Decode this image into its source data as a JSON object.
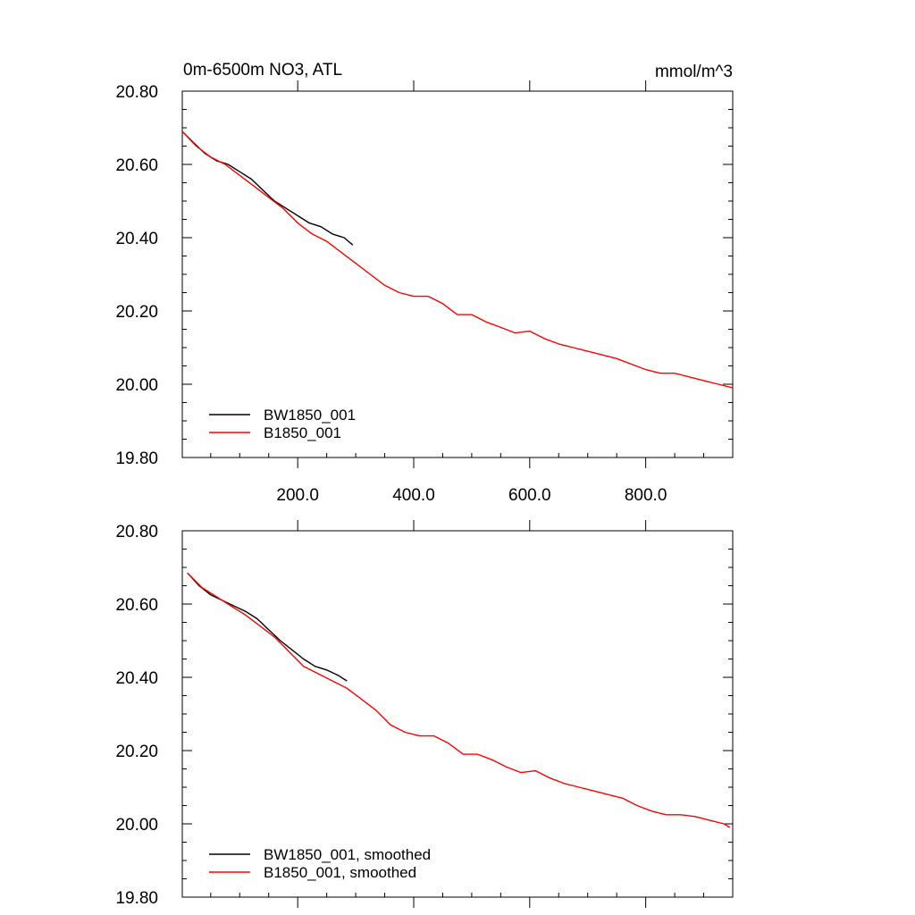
{
  "chart_data": [
    {
      "type": "line",
      "title_left": "0m-6500m NO3, ATL",
      "title_right": "mmol/m^3",
      "xlim": [
        1,
        950
      ],
      "ylim": [
        19.8,
        20.8
      ],
      "y_ticks": [
        "20.80",
        "20.60",
        "20.40",
        "20.20",
        "20.00",
        "19.80"
      ],
      "x_ticks": [
        "200.0",
        "400.0",
        "600.0",
        "800.0"
      ],
      "legend_position": "bottom-left",
      "series": [
        {
          "name": "BW1850_001",
          "color": "#000000",
          "x": [
            1,
            20,
            40,
            60,
            80,
            100,
            120,
            140,
            160,
            180,
            200,
            220,
            240,
            260,
            280,
            295
          ],
          "y": [
            20.69,
            20.66,
            20.63,
            20.61,
            20.6,
            20.58,
            20.56,
            20.53,
            20.5,
            20.48,
            20.46,
            20.44,
            20.43,
            20.41,
            20.4,
            20.38
          ]
        },
        {
          "name": "B1850_001",
          "color": "#ff0000",
          "x": [
            1,
            25,
            50,
            75,
            100,
            125,
            150,
            175,
            200,
            225,
            250,
            275,
            300,
            325,
            350,
            375,
            400,
            425,
            450,
            475,
            500,
            525,
            550,
            575,
            600,
            625,
            650,
            675,
            700,
            725,
            750,
            775,
            800,
            825,
            850,
            875,
            900,
            925,
            950
          ],
          "y": [
            20.69,
            20.65,
            20.62,
            20.6,
            20.57,
            20.54,
            20.51,
            20.48,
            20.44,
            20.41,
            20.39,
            20.36,
            20.33,
            20.3,
            20.27,
            20.25,
            20.24,
            20.24,
            20.22,
            20.19,
            20.19,
            20.17,
            20.155,
            20.14,
            20.145,
            20.125,
            20.11,
            20.1,
            20.09,
            20.08,
            20.07,
            20.055,
            20.04,
            20.03,
            20.03,
            20.02,
            20.01,
            20.0,
            19.99
          ]
        }
      ]
    },
    {
      "type": "line",
      "title_left": "",
      "title_right": "",
      "xlim": [
        1,
        950
      ],
      "ylim": [
        19.8,
        20.8
      ],
      "y_ticks": [
        "20.80",
        "20.60",
        "20.40",
        "20.20",
        "20.00",
        "19.80"
      ],
      "x_ticks": [],
      "legend_position": "bottom-left",
      "series": [
        {
          "name": "BW1850_001, smoothed",
          "color": "#000000",
          "x": [
            10,
            30,
            50,
            70,
            90,
            110,
            130,
            150,
            170,
            190,
            210,
            230,
            250,
            270,
            285
          ],
          "y": [
            20.685,
            20.65,
            20.625,
            20.61,
            20.595,
            20.58,
            20.56,
            20.53,
            20.5,
            20.475,
            20.45,
            20.43,
            20.42,
            20.405,
            20.39
          ]
        },
        {
          "name": "B1850_001, smoothed",
          "color": "#ff0000",
          "x": [
            10,
            35,
            60,
            85,
            110,
            135,
            160,
            185,
            210,
            235,
            260,
            285,
            310,
            335,
            360,
            385,
            410,
            435,
            460,
            485,
            510,
            535,
            560,
            585,
            610,
            635,
            660,
            685,
            710,
            735,
            760,
            785,
            810,
            835,
            860,
            885,
            910,
            935,
            945
          ],
          "y": [
            20.685,
            20.645,
            20.62,
            20.595,
            20.57,
            20.54,
            20.51,
            20.47,
            20.43,
            20.41,
            20.39,
            20.37,
            20.34,
            20.31,
            20.27,
            20.25,
            20.24,
            20.24,
            20.22,
            20.19,
            20.19,
            20.175,
            20.155,
            20.14,
            20.145,
            20.125,
            20.11,
            20.1,
            20.09,
            20.08,
            20.07,
            20.05,
            20.035,
            20.025,
            20.025,
            20.02,
            20.01,
            20.0,
            19.99
          ]
        }
      ]
    }
  ]
}
